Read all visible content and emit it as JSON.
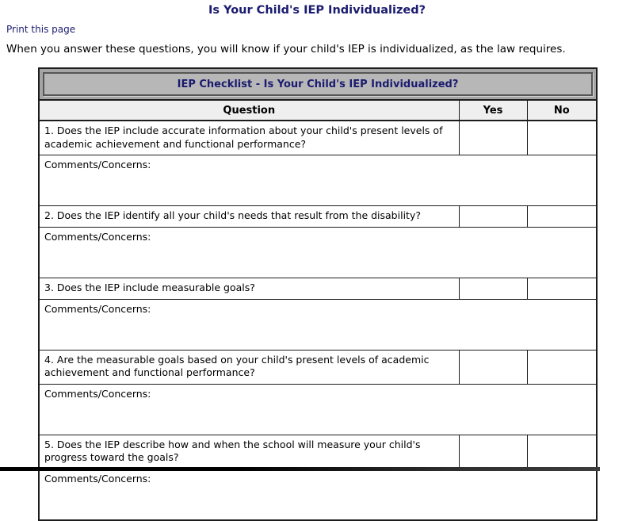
{
  "page": {
    "title": "Is Your Child's IEP Individualized?",
    "print_link": "Print this page",
    "intro": "When you answer these questions, you will know if your child's IEP is individualized, as the law requires."
  },
  "checklist": {
    "banner": "IEP Checklist - Is Your Child's IEP Individualized?",
    "columns": {
      "question": "Question",
      "yes": "Yes",
      "no": "No"
    },
    "comments_label": "Comments/Concerns:",
    "questions": [
      "1. Does the IEP include accurate information about your child's present levels of academic achievement and functional performance?",
      "2. Does the IEP identify all your child's needs that result from the disability?",
      "3. Does the IEP include measurable goals?",
      "4. Are the measurable goals based on your child's present levels of academic achievement and functional performance?",
      "5. Does the IEP describe how and when the school will measure your child's progress toward the goals?"
    ]
  },
  "colors": {
    "accent_navy": "#1b1b70",
    "line_color": "#1c1c1c",
    "banner_bg": "#a5a5a5",
    "banner_panel_bg": "#b7b7b7",
    "header_row_bg": "#efefef"
  }
}
